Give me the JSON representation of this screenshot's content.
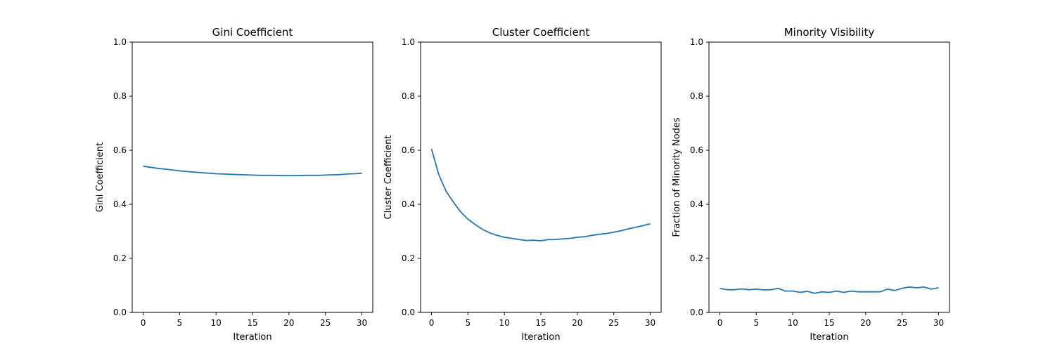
{
  "chart_data": [
    {
      "type": "line",
      "title": "Gini Coefficient",
      "xlabel": "Iteration",
      "ylabel": "Gini Coefficient",
      "xlim": [
        -1.5,
        31.5
      ],
      "ylim": [
        0,
        1
      ],
      "xticks": [
        0,
        5,
        10,
        15,
        20,
        25,
        30
      ],
      "yticks": [
        0.0,
        0.2,
        0.4,
        0.6,
        0.8,
        1.0
      ],
      "xtick_labels": [
        "0",
        "5",
        "10",
        "15",
        "20",
        "25",
        "30"
      ],
      "ytick_labels": [
        "0.0",
        "0.2",
        "0.4",
        "0.6",
        "0.8",
        "1.0"
      ],
      "color": "#1f77b4",
      "x": [
        0,
        1,
        2,
        3,
        4,
        5,
        6,
        7,
        8,
        9,
        10,
        11,
        12,
        13,
        14,
        15,
        16,
        17,
        18,
        19,
        20,
        21,
        22,
        23,
        24,
        25,
        26,
        27,
        28,
        29,
        30
      ],
      "y": [
        0.541,
        0.537,
        0.533,
        0.53,
        0.527,
        0.524,
        0.521,
        0.519,
        0.517,
        0.515,
        0.513,
        0.512,
        0.511,
        0.51,
        0.509,
        0.508,
        0.507,
        0.507,
        0.507,
        0.506,
        0.506,
        0.506,
        0.507,
        0.507,
        0.507,
        0.508,
        0.509,
        0.51,
        0.512,
        0.513,
        0.515
      ]
    },
    {
      "type": "line",
      "title": "Cluster Coefficient",
      "xlabel": "Iteration",
      "ylabel": "Cluster Coefficient",
      "xlim": [
        -1.5,
        31.5
      ],
      "ylim": [
        0,
        1
      ],
      "xticks": [
        0,
        5,
        10,
        15,
        20,
        25,
        30
      ],
      "yticks": [
        0.0,
        0.2,
        0.4,
        0.6,
        0.8,
        1.0
      ],
      "xtick_labels": [
        "0",
        "5",
        "10",
        "15",
        "20",
        "25",
        "30"
      ],
      "ytick_labels": [
        "0.0",
        "0.2",
        "0.4",
        "0.6",
        "0.8",
        "1.0"
      ],
      "color": "#1f77b4",
      "x": [
        0,
        1,
        2,
        3,
        4,
        5,
        6,
        7,
        8,
        9,
        10,
        11,
        12,
        13,
        14,
        15,
        16,
        17,
        18,
        19,
        20,
        21,
        22,
        23,
        24,
        25,
        26,
        27,
        28,
        29,
        30
      ],
      "y": [
        0.605,
        0.51,
        0.448,
        0.408,
        0.372,
        0.345,
        0.325,
        0.307,
        0.294,
        0.285,
        0.278,
        0.274,
        0.27,
        0.266,
        0.267,
        0.265,
        0.269,
        0.27,
        0.272,
        0.274,
        0.278,
        0.28,
        0.285,
        0.289,
        0.292,
        0.297,
        0.302,
        0.309,
        0.315,
        0.321,
        0.328
      ]
    },
    {
      "type": "line",
      "title": "Minority Visibility",
      "xlabel": "Iteration",
      "ylabel": "Fraction of Minority Nodes",
      "xlim": [
        -1.5,
        31.5
      ],
      "ylim": [
        0,
        1
      ],
      "xticks": [
        0,
        5,
        10,
        15,
        20,
        25,
        30
      ],
      "yticks": [
        0.0,
        0.2,
        0.4,
        0.6,
        0.8,
        1.0
      ],
      "xtick_labels": [
        "0",
        "5",
        "10",
        "15",
        "20",
        "25",
        "30"
      ],
      "ytick_labels": [
        "0.0",
        "0.2",
        "0.4",
        "0.6",
        "0.8",
        "1.0"
      ],
      "color": "#1f77b4",
      "x": [
        0,
        1,
        2,
        3,
        4,
        5,
        6,
        7,
        8,
        9,
        10,
        11,
        12,
        13,
        14,
        15,
        16,
        17,
        18,
        19,
        20,
        21,
        22,
        23,
        24,
        25,
        26,
        27,
        28,
        29,
        30
      ],
      "y": [
        0.089,
        0.084,
        0.084,
        0.087,
        0.084,
        0.086,
        0.083,
        0.084,
        0.089,
        0.079,
        0.079,
        0.074,
        0.078,
        0.071,
        0.076,
        0.074,
        0.079,
        0.074,
        0.079,
        0.076,
        0.076,
        0.076,
        0.076,
        0.086,
        0.081,
        0.089,
        0.094,
        0.091,
        0.094,
        0.086,
        0.091
      ]
    }
  ]
}
